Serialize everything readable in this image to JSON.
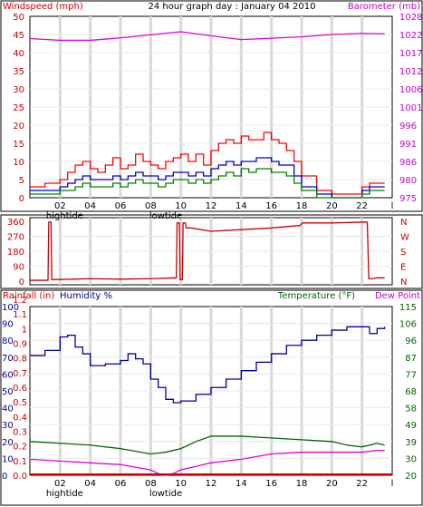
{
  "header": {
    "title": "24 hour graph day : January 04 2010",
    "left_label": "Windspeed (mph)",
    "right_label": "Barometer (mb)"
  },
  "colors": {
    "grid_vertical": "#d8d8d8",
    "grid_horizontal": "#e8e8e8",
    "wind_gust": "#ff0000",
    "wind_avg": "#0000cc",
    "wind_low": "#008000",
    "barometer": "#dd00dd",
    "wind_direction": "#cc0000",
    "humidity": "#000099",
    "temperature": "#006600",
    "dew_point": "#dd00dd",
    "rainfall": "#cc0000",
    "left_axis_text": "#cc0000",
    "right_axis_text": "#cc00cc",
    "temp_axis_text": "#006600",
    "humidity_label": "#000099"
  },
  "chart_data": [
    {
      "type": "line",
      "panel": "wind-barometer",
      "title": "24 hour graph day : January 04 2010",
      "ylabel": "Windspeed (mph)",
      "y2label": "Barometer (mb)",
      "ylim": [
        0,
        50
      ],
      "y2lim": [
        975,
        1028
      ],
      "yticks": [
        "0",
        "5",
        "10",
        "15",
        "20",
        "25",
        "30",
        "35",
        "40",
        "45",
        "50"
      ],
      "y2ticks": [
        "975",
        "980",
        "986",
        "991",
        "996",
        "1001",
        "1006",
        "1012",
        "1017",
        "1022",
        "1028"
      ],
      "xticks": [
        "02",
        "04",
        "06",
        "08",
        "10",
        "12",
        "14",
        "16",
        "18",
        "20",
        "22",
        "l"
      ],
      "tide_labels": [
        {
          "text": "hightide",
          "x": 2.3
        },
        {
          "text": "lowtide",
          "x": 9.0
        }
      ],
      "series": [
        {
          "key": "gust",
          "axis": "left",
          "x": [
            0,
            1,
            2,
            2.5,
            3,
            3.5,
            4,
            4.5,
            5,
            5.5,
            6,
            6.5,
            7,
            7.5,
            8,
            8.5,
            9,
            9.5,
            10,
            10.5,
            11,
            11.5,
            12,
            12.5,
            13,
            13.5,
            14,
            14.5,
            15,
            15.5,
            16,
            16.5,
            17,
            17.5,
            18,
            19,
            20,
            21,
            22,
            22.5,
            23,
            23.5
          ],
          "y": [
            3,
            4,
            5,
            7,
            9,
            10,
            8,
            7,
            9,
            11,
            8,
            9,
            12,
            10,
            9,
            8,
            10,
            11,
            12,
            10,
            12,
            9,
            13,
            15,
            16,
            15,
            17,
            16,
            16,
            18,
            16,
            15,
            13,
            10,
            6,
            2,
            1,
            1,
            3,
            4,
            4,
            4
          ]
        },
        {
          "key": "avg",
          "axis": "left",
          "x": [
            0,
            1,
            2,
            2.5,
            3,
            3.5,
            4,
            4.5,
            5,
            5.5,
            6,
            6.5,
            7,
            7.5,
            8,
            8.5,
            9,
            9.5,
            10,
            10.5,
            11,
            11.5,
            12,
            12.5,
            13,
            13.5,
            14,
            14.5,
            15,
            15.5,
            16,
            16.5,
            17,
            17.5,
            18,
            19,
            20,
            21,
            22,
            22.5,
            23,
            23.5
          ],
          "y": [
            2,
            2,
            3,
            4,
            5,
            6,
            5,
            5,
            5,
            6,
            5,
            6,
            7,
            6,
            6,
            5,
            6,
            7,
            7,
            6,
            7,
            6,
            8,
            9,
            10,
            9,
            10,
            10,
            11,
            11,
            10,
            9,
            9,
            6,
            3,
            1,
            0,
            0,
            2,
            3,
            3,
            3
          ]
        },
        {
          "key": "low",
          "axis": "left",
          "x": [
            0,
            1,
            2,
            2.5,
            3,
            3.5,
            4,
            4.5,
            5,
            5.5,
            6,
            6.5,
            7,
            7.5,
            8,
            8.5,
            9,
            9.5,
            10,
            10.5,
            11,
            11.5,
            12,
            12.5,
            13,
            13.5,
            14,
            14.5,
            15,
            15.5,
            16,
            16.5,
            17,
            17.5,
            18,
            19,
            20,
            21,
            22,
            22.5,
            23,
            23.5
          ],
          "y": [
            1,
            1,
            2,
            2,
            3,
            4,
            3,
            3,
            3,
            4,
            3,
            4,
            5,
            4,
            4,
            3,
            4,
            5,
            5,
            4,
            5,
            4,
            5,
            6,
            7,
            6,
            8,
            7,
            8,
            8,
            7,
            7,
            6,
            4,
            2,
            0,
            0,
            0,
            1,
            2,
            2,
            2
          ]
        },
        {
          "key": "barometer",
          "axis": "right",
          "x": [
            0,
            2,
            4,
            6,
            8,
            10,
            12,
            14,
            16,
            18,
            20,
            22,
            23.5
          ],
          "y": [
            1021.5,
            1021,
            1021,
            1021.7,
            1022.6,
            1023.5,
            1022.3,
            1021.2,
            1021.6,
            1022,
            1022.7,
            1023,
            1022.9
          ]
        }
      ]
    },
    {
      "type": "line",
      "panel": "wind-direction",
      "ylim": [
        0,
        360
      ],
      "yticks": [
        "0",
        "90",
        "180",
        "270",
        "360"
      ],
      "y2ticks": [
        "N",
        "W",
        "S",
        "E",
        "N"
      ],
      "series": [
        {
          "key": "direction",
          "x": [
            0,
            1,
            1.2,
            1.25,
            1.4,
            1.45,
            2,
            4,
            6,
            8,
            9.7,
            9.75,
            9.9,
            9.95,
            10.1,
            10.15,
            10.3,
            10.35,
            10.6,
            10.65,
            12,
            14,
            16,
            17.9,
            18.05,
            20,
            22,
            22.35,
            22.45,
            22.7,
            23,
            23.5
          ],
          "y": [
            5,
            5,
            5,
            355,
            355,
            10,
            10,
            15,
            12,
            15,
            20,
            350,
            350,
            10,
            10,
            350,
            350,
            320,
            320,
            320,
            300,
            310,
            320,
            335,
            350,
            350,
            355,
            355,
            15,
            15,
            20,
            20
          ]
        }
      ]
    },
    {
      "type": "line",
      "panel": "humidity-temp",
      "ylabel": "Rainfall (in)",
      "ylabel2": "Humidity %",
      "y2label": "Temperature (°F)",
      "y2label2": "Dew Point",
      "ylim": [
        0,
        100
      ],
      "yticks_humidity": [
        "0",
        "10",
        "20",
        "30",
        "40",
        "50",
        "60",
        "70",
        "80",
        "90",
        "100"
      ],
      "yticks_rain": [
        "0.0",
        "0.1",
        "0.2",
        "0.3",
        "0.4",
        "0.5",
        "0.6",
        "0.7",
        "0.8",
        "0.9",
        "1",
        "1.1",
        "1.2"
      ],
      "y2ticks": [
        "20",
        "30",
        "39",
        "49",
        "58",
        "68",
        "77",
        "87",
        "96",
        "106",
        "115"
      ],
      "xticks": [
        "02",
        "04",
        "06",
        "08",
        "10",
        "12",
        "14",
        "16",
        "18",
        "20",
        "22",
        "l"
      ],
      "tide_labels": [
        {
          "text": "hightide",
          "x": 2.3
        },
        {
          "text": "lowtide",
          "x": 9.0
        }
      ],
      "series": [
        {
          "key": "humidity",
          "x": [
            0,
            1,
            2,
            2.5,
            3,
            3.5,
            4,
            5,
            6,
            6.5,
            7,
            7.5,
            8,
            8.5,
            9,
            9.5,
            10,
            11,
            12,
            13,
            14,
            15,
            16,
            17,
            18,
            19,
            20,
            21,
            22,
            22.5,
            23,
            23.5
          ],
          "y": [
            71,
            74,
            82,
            83,
            76,
            72,
            65,
            66,
            68,
            72,
            69,
            66,
            57,
            52,
            45,
            43,
            44,
            48,
            52,
            57,
            62,
            67,
            72,
            77,
            80,
            83,
            86,
            88,
            88,
            84,
            87,
            88
          ]
        },
        {
          "key": "temperature",
          "axis": "right",
          "x": [
            0,
            2,
            4,
            6,
            8,
            9,
            10,
            11,
            12,
            14,
            16,
            18,
            20,
            21,
            22,
            22.5,
            23,
            23.5
          ],
          "y": [
            39,
            38,
            37,
            35,
            32,
            33,
            35,
            39,
            42,
            42,
            41,
            40,
            39,
            37,
            36,
            37,
            38,
            37
          ]
        },
        {
          "key": "dew_point",
          "axis": "right",
          "x": [
            0,
            2,
            4,
            6,
            8,
            8.5,
            9,
            9.5,
            10,
            11,
            12,
            14,
            16,
            18,
            20,
            22,
            23,
            23.5
          ],
          "y": [
            29,
            28,
            27,
            26,
            23,
            21,
            20,
            21,
            23,
            25,
            27,
            29,
            32,
            33,
            33,
            33,
            34,
            34
          ]
        },
        {
          "key": "rainfall",
          "y_const": 0.0
        }
      ]
    }
  ]
}
